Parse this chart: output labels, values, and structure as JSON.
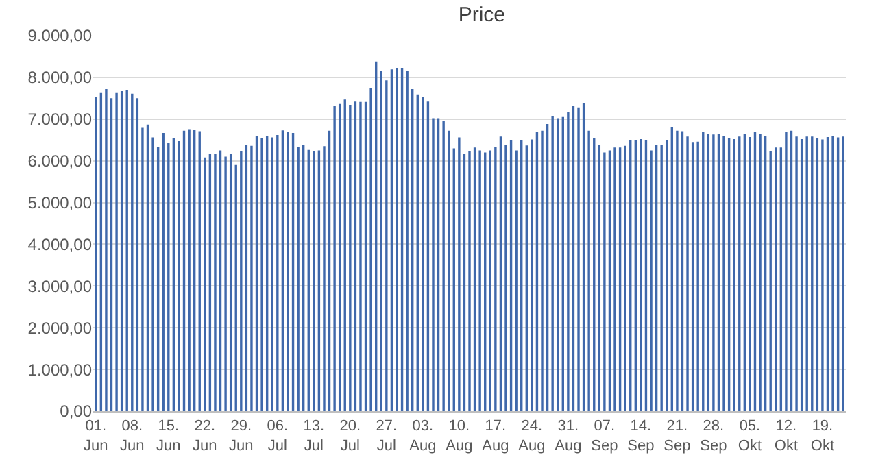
{
  "chart_data": {
    "type": "bar",
    "title": "Price",
    "color": "#3f68ab",
    "grid": "y",
    "legend": false,
    "categories": [
      "01. Jun",
      null,
      null,
      null,
      null,
      null,
      null,
      "08. Jun",
      null,
      null,
      null,
      null,
      null,
      null,
      "15. Jun",
      null,
      null,
      null,
      null,
      null,
      null,
      "22. Jun",
      null,
      null,
      null,
      null,
      null,
      null,
      "29. Jun",
      null,
      null,
      null,
      null,
      null,
      null,
      "06. Jul",
      null,
      null,
      null,
      null,
      null,
      null,
      "13. Jul",
      null,
      null,
      null,
      null,
      null,
      null,
      "20. Jul",
      null,
      null,
      null,
      null,
      null,
      null,
      "27. Jul",
      null,
      null,
      null,
      null,
      null,
      null,
      "03. Aug",
      null,
      null,
      null,
      null,
      null,
      null,
      "10. Aug",
      null,
      null,
      null,
      null,
      null,
      null,
      "17. Aug",
      null,
      null,
      null,
      null,
      null,
      null,
      "24. Aug",
      null,
      null,
      null,
      null,
      null,
      null,
      "31. Aug",
      null,
      null,
      null,
      null,
      null,
      null,
      "07. Sep",
      null,
      null,
      null,
      null,
      null,
      null,
      "14. Sep",
      null,
      null,
      null,
      null,
      null,
      null,
      "21. Sep",
      null,
      null,
      null,
      null,
      null,
      null,
      "28. Sep",
      null,
      null,
      null,
      null,
      null,
      null,
      "05. Okt",
      null,
      null,
      null,
      null,
      null,
      null,
      "12. Okt",
      null,
      null,
      null,
      null,
      null,
      null,
      "19. Okt",
      null,
      null,
      null,
      null
    ],
    "values": [
      7540,
      7640,
      7720,
      7500,
      7640,
      7670,
      7690,
      7610,
      7500,
      6790,
      6870,
      6560,
      6330,
      6670,
      6430,
      6540,
      6470,
      6720,
      6760,
      6750,
      6710,
      6080,
      6160,
      6160,
      6250,
      6100,
      6160,
      5900,
      6230,
      6390,
      6360,
      6600,
      6550,
      6590,
      6560,
      6620,
      6730,
      6700,
      6670,
      6330,
      6390,
      6260,
      6230,
      6250,
      6350,
      6720,
      7310,
      7360,
      7470,
      7340,
      7420,
      7410,
      7410,
      7740,
      8380,
      8160,
      7930,
      8190,
      8230,
      8230,
      8160,
      7720,
      7590,
      7540,
      7420,
      7020,
      7020,
      6960,
      6720,
      6300,
      6560,
      6160,
      6230,
      6320,
      6250,
      6200,
      6250,
      6340,
      6580,
      6390,
      6490,
      6250,
      6490,
      6370,
      6510,
      6690,
      6720,
      6880,
      7080,
      7020,
      7050,
      7170,
      7310,
      7280,
      7380,
      6720,
      6540,
      6390,
      6200,
      6250,
      6320,
      6320,
      6360,
      6490,
      6490,
      6520,
      6490,
      6250,
      6380,
      6380,
      6490,
      6800,
      6720,
      6710,
      6580,
      6450,
      6460,
      6690,
      6650,
      6630,
      6650,
      6600,
      6550,
      6520,
      6580,
      6650,
      6570,
      6690,
      6650,
      6600,
      6240,
      6320,
      6320,
      6700,
      6720,
      6580,
      6520,
      6580,
      6580,
      6550,
      6510,
      6570,
      6600,
      6560,
      6580
    ],
    "ylim": [
      0,
      9000
    ],
    "yticks": [
      {
        "value": 0,
        "label": "0,00"
      },
      {
        "value": 1000,
        "label": "1.000,00"
      },
      {
        "value": 2000,
        "label": "2.000,00"
      },
      {
        "value": 3000,
        "label": "3.000,00"
      },
      {
        "value": 4000,
        "label": "4.000,00"
      },
      {
        "value": 5000,
        "label": "5.000,00"
      },
      {
        "value": 6000,
        "label": "6.000,00"
      },
      {
        "value": 7000,
        "label": "7.000,00"
      },
      {
        "value": 8000,
        "label": "8.000,00"
      },
      {
        "value": 9000,
        "label": "9.000,00"
      }
    ]
  }
}
